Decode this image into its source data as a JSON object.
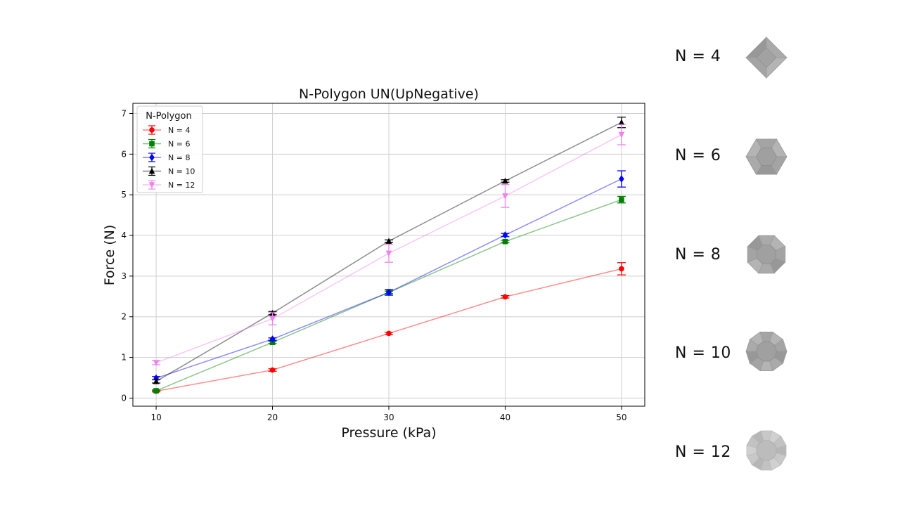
{
  "chart_data": {
    "type": "line",
    "title": "N-Polygon UN(UpNegative)",
    "xlabel": "Pressure (kPa)",
    "ylabel": "Force (N)",
    "x": [
      10,
      20,
      30,
      40,
      50
    ],
    "xticks": [
      "10",
      "20",
      "30",
      "40",
      "50"
    ],
    "yticks": [
      "0",
      "1",
      "2",
      "3",
      "4",
      "5",
      "6",
      "7"
    ],
    "xlim": [
      8,
      52
    ],
    "ylim": [
      -0.2,
      7.25
    ],
    "grid": true,
    "legend_title": "N-Polygon",
    "legend_position": "upper-left",
    "series": [
      {
        "name": "N = 4",
        "color": "#ff0000",
        "marker": "circle",
        "values": [
          0.17,
          0.69,
          1.59,
          2.49,
          3.18
        ],
        "errors": [
          0.02,
          0.03,
          0.03,
          0.03,
          0.15
        ]
      },
      {
        "name": "N = 6",
        "color": "#008000",
        "marker": "square",
        "values": [
          0.18,
          1.37,
          2.6,
          3.85,
          4.88
        ],
        "errors": [
          0.02,
          0.03,
          0.03,
          0.03,
          0.08
        ]
      },
      {
        "name": "N = 8",
        "color": "#0000ff",
        "marker": "diamond",
        "values": [
          0.49,
          1.45,
          2.6,
          4.01,
          5.39
        ],
        "errors": [
          0.04,
          0.03,
          0.07,
          0.04,
          0.2
        ]
      },
      {
        "name": "N = 10",
        "color": "#000000",
        "marker": "triangle-up",
        "values": [
          0.41,
          2.09,
          3.86,
          5.34,
          6.78
        ],
        "errors": [
          0.04,
          0.04,
          0.03,
          0.03,
          0.13
        ]
      },
      {
        "name": "N = 12",
        "color": "#ee82ee",
        "marker": "triangle-down",
        "values": [
          0.87,
          1.95,
          3.56,
          4.97,
          6.48
        ],
        "errors": [
          0.05,
          0.15,
          0.22,
          0.28,
          0.25
        ]
      }
    ]
  },
  "shapes_panel": {
    "items": [
      {
        "label": "N = 4",
        "sides": 4,
        "icon": "square-pyramid-icon"
      },
      {
        "label": "N = 6",
        "sides": 6,
        "icon": "hexagonal-frustum-icon"
      },
      {
        "label": "N = 8",
        "sides": 8,
        "icon": "octagonal-frustum-icon"
      },
      {
        "label": "N = 10",
        "sides": 10,
        "icon": "decagonal-frustum-icon"
      },
      {
        "label": "N = 12",
        "sides": 12,
        "icon": "dodecagonal-frustum-icon"
      }
    ]
  }
}
